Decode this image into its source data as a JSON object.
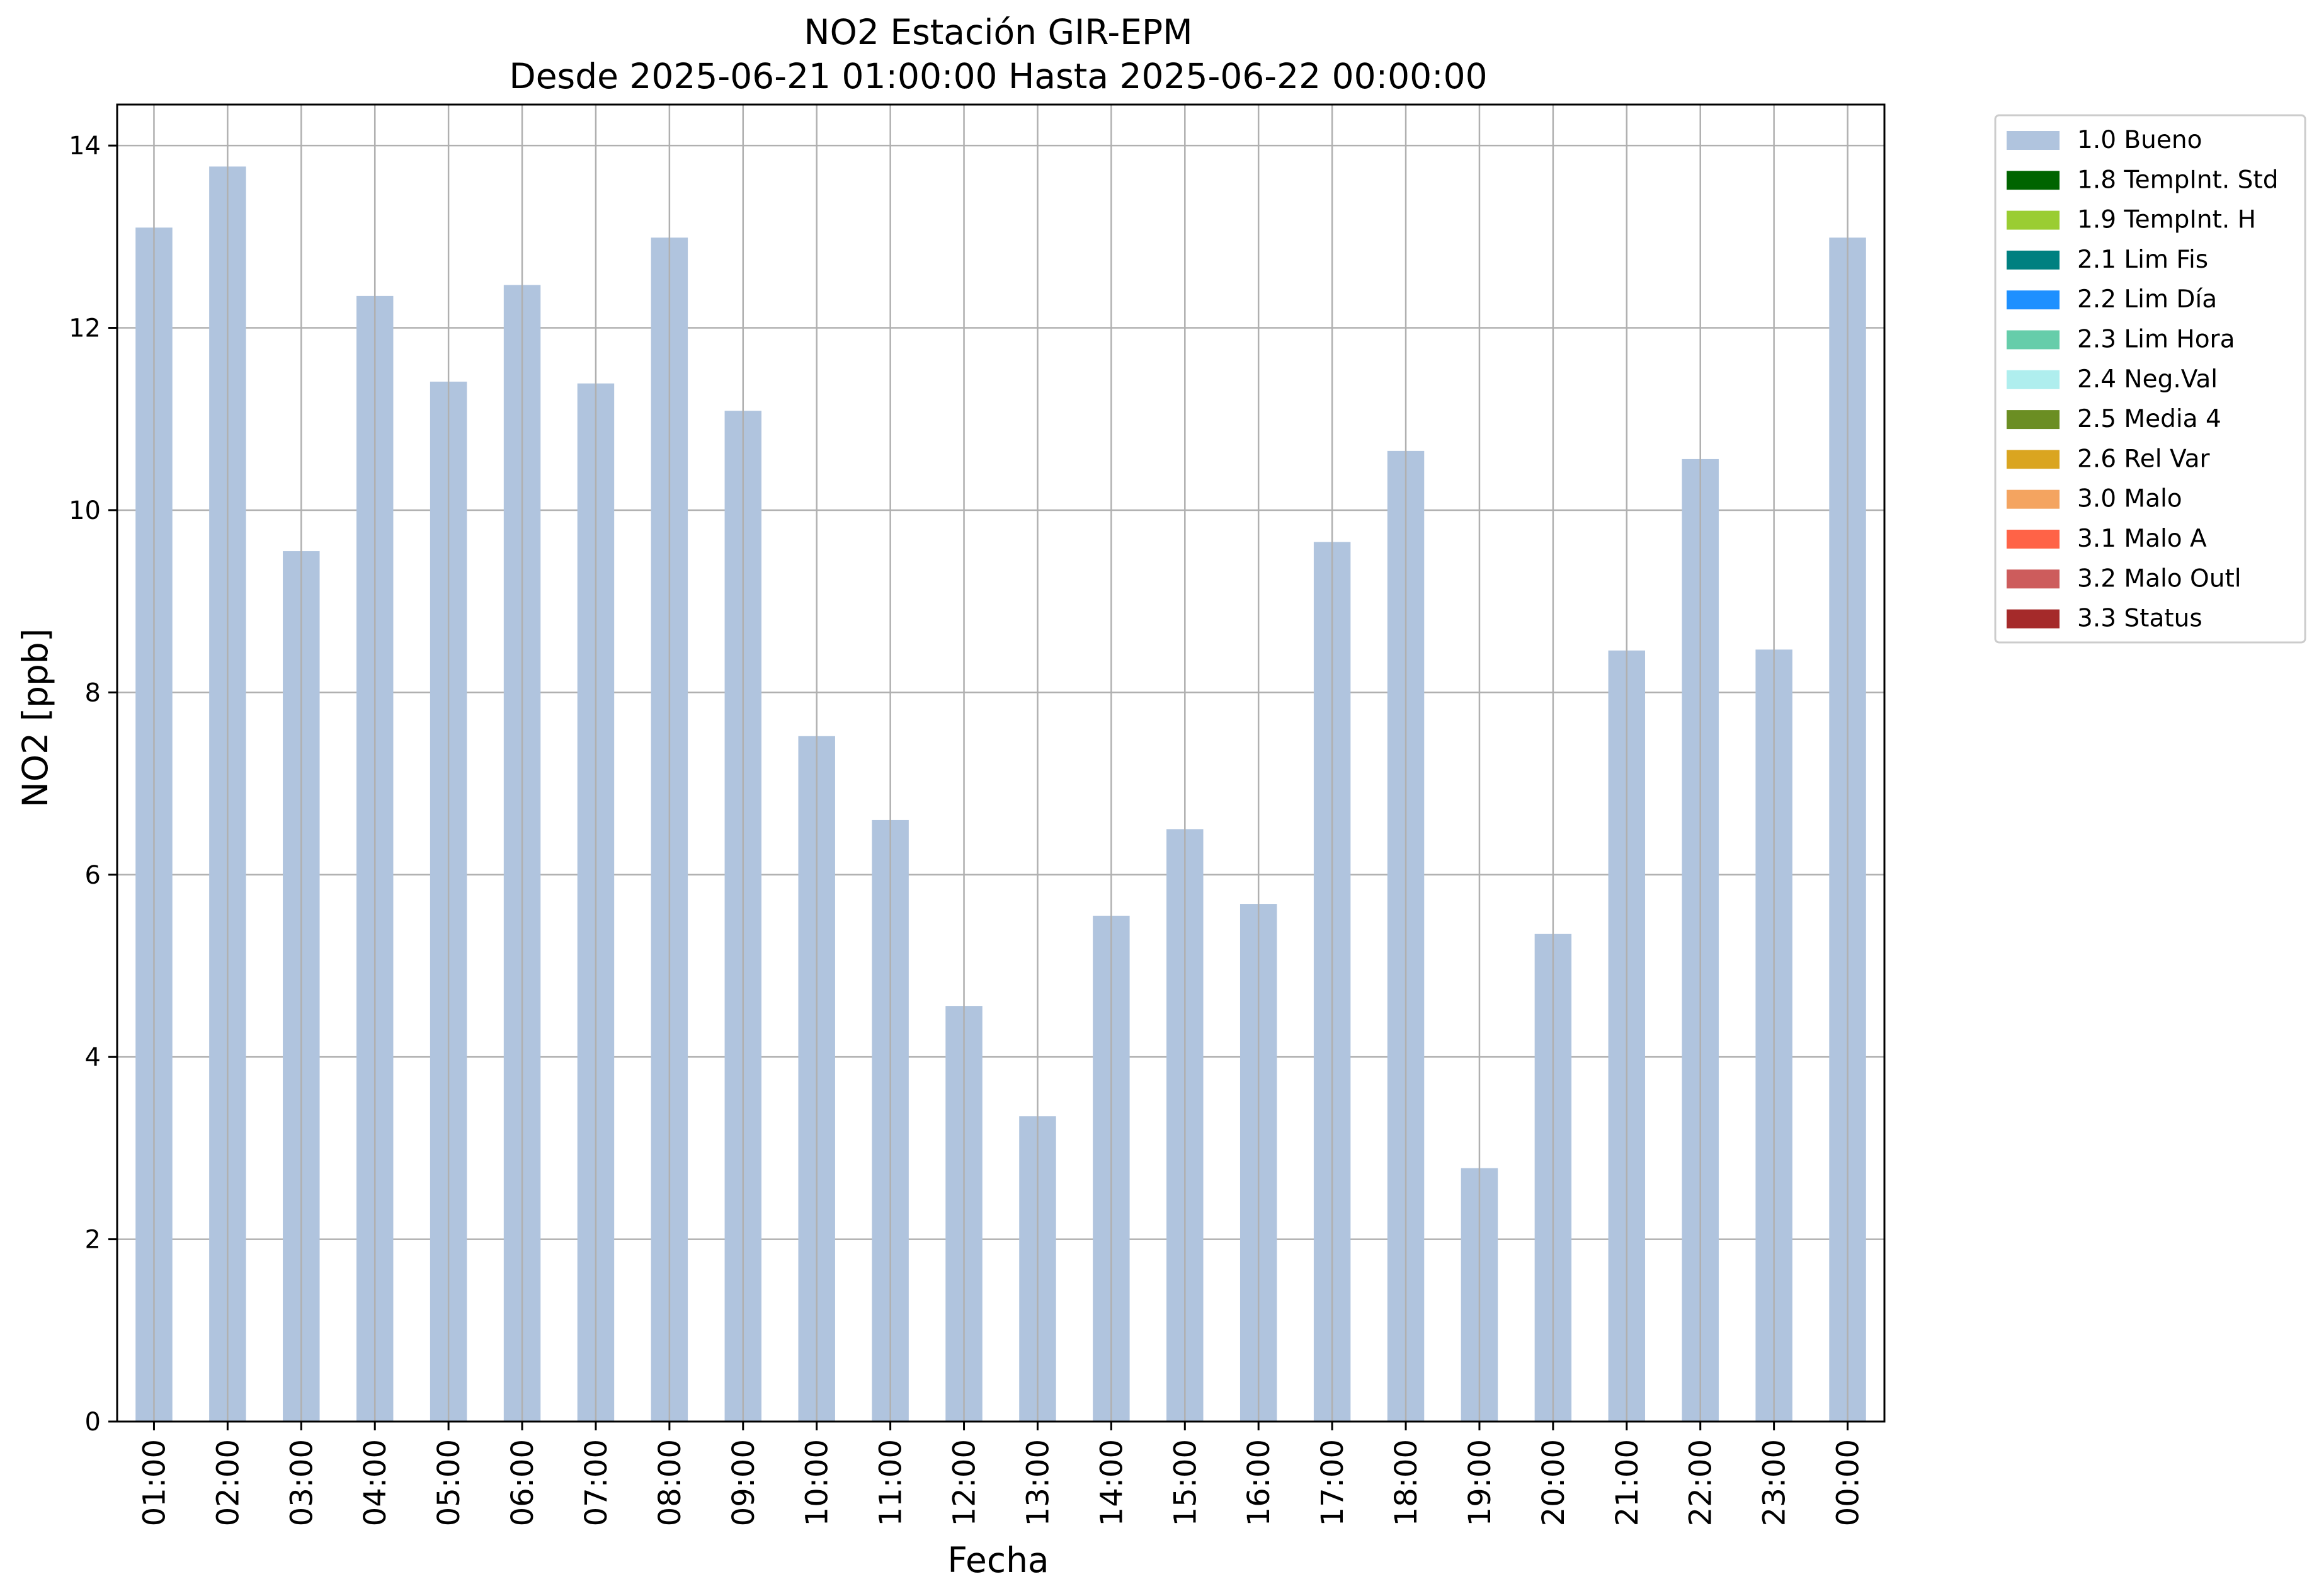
{
  "chart_data": {
    "type": "bar",
    "title": "NO2 Estación GIR-EPM",
    "subtitle": "Desde 2025-06-21 01:00:00 Hasta 2025-06-22 00:00:00",
    "xlabel": "Fecha",
    "ylabel": "NO2 [ppb]",
    "ylim": [
      0,
      14.45
    ],
    "yticks": [
      "0",
      "2",
      "4",
      "6",
      "8",
      "10",
      "12",
      "14"
    ],
    "grid": true,
    "legend_position": "outside-right-top",
    "categories": [
      "01:00",
      "02:00",
      "03:00",
      "04:00",
      "05:00",
      "06:00",
      "07:00",
      "08:00",
      "09:00",
      "10:00",
      "11:00",
      "12:00",
      "13:00",
      "14:00",
      "15:00",
      "16:00",
      "17:00",
      "18:00",
      "19:00",
      "20:00",
      "21:00",
      "22:00",
      "23:00",
      "00:00"
    ],
    "series": [
      {
        "name": "1.0 Bueno",
        "color": "#b0c4de",
        "values": [
          13.1,
          13.77,
          9.55,
          12.35,
          11.41,
          12.47,
          11.39,
          12.99,
          11.09,
          7.52,
          6.6,
          4.56,
          3.35,
          5.55,
          6.5,
          5.68,
          9.65,
          10.65,
          2.78,
          5.35,
          8.46,
          10.56,
          8.47,
          12.99
        ]
      }
    ],
    "legend": [
      {
        "label": "1.0 Bueno",
        "color": "#b0c4de"
      },
      {
        "label": "1.8 TempInt. Std",
        "color": "#006400"
      },
      {
        "label": "1.9 TempInt. H",
        "color": "#9acd32"
      },
      {
        "label": "2.1 Lim Fis",
        "color": "#008080"
      },
      {
        "label": "2.2 Lim Día",
        "color": "#1e90ff"
      },
      {
        "label": "2.3 Lim Hora",
        "color": "#66cdaa"
      },
      {
        "label": "2.4 Neg.Val",
        "color": "#afeeee"
      },
      {
        "label": "2.5 Media 4",
        "color": "#6b8e23"
      },
      {
        "label": "2.6 Rel Var",
        "color": "#daa520"
      },
      {
        "label": "3.0 Malo",
        "color": "#f4a460"
      },
      {
        "label": "3.1 Malo A",
        "color": "#ff6347"
      },
      {
        "label": "3.2 Malo Outl",
        "color": "#cd5c5c"
      },
      {
        "label": "3.3 Status",
        "color": "#a52a2a"
      }
    ]
  }
}
